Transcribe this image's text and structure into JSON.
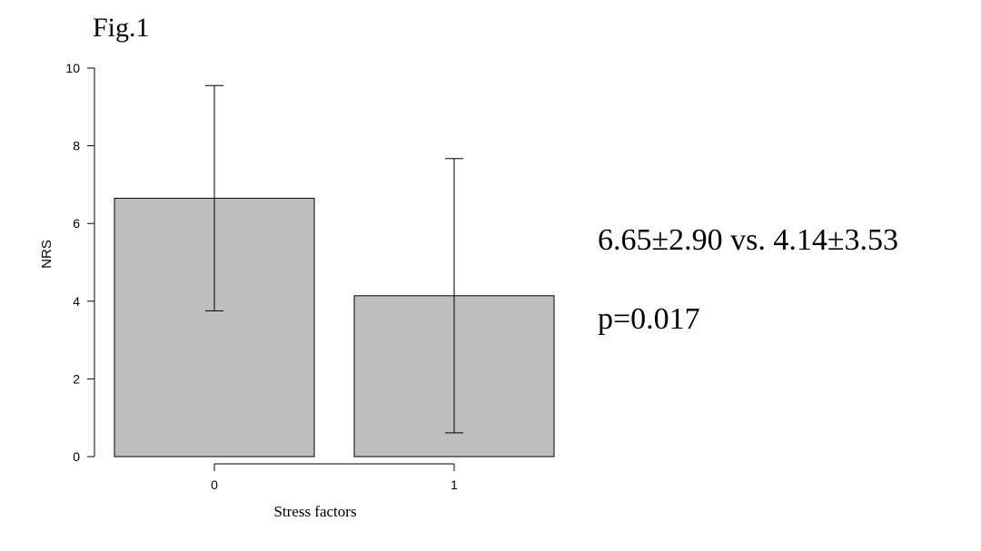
{
  "figure_label": "Fig.1",
  "chart_data": {
    "type": "bar",
    "title": "",
    "xlabel": "Stress factors",
    "ylabel": "NRS",
    "categories": [
      "0",
      "1"
    ],
    "values": [
      6.65,
      4.14
    ],
    "errors": [
      2.9,
      3.53
    ],
    "ylim": [
      0,
      10
    ],
    "yticks": [
      0,
      2,
      4,
      6,
      8,
      10
    ],
    "grid": false,
    "bar_color": "#bebebe",
    "edge_color": "#000000"
  },
  "annotations": {
    "comparison": "6.65±2.90 vs. 4.14±3.53",
    "p_value": "p=0.017"
  }
}
